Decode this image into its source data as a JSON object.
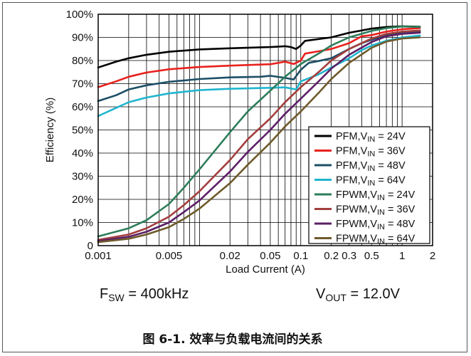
{
  "chart_data": {
    "type": "line",
    "title": "",
    "xlabel": "Load Current (A)",
    "ylabel": "Efficiency (%)",
    "x_scale": "log",
    "xlim": [
      0.001,
      2
    ],
    "ylim": [
      0,
      100
    ],
    "x_ticks": [
      {
        "value": 0.001,
        "label": "0.001"
      },
      {
        "value": 0.005,
        "label": "0.005"
      },
      {
        "value": 0.02,
        "label": "0.02"
      },
      {
        "value": 0.05,
        "label": "0.05"
      },
      {
        "value": 0.1,
        "label": "0.1"
      },
      {
        "value": 0.2,
        "label": "0.2"
      },
      {
        "value": 0.3,
        "label": "0.3"
      },
      {
        "value": 0.5,
        "label": "0.5"
      },
      {
        "value": 1,
        "label": "1"
      },
      {
        "value": 2,
        "label": "2"
      }
    ],
    "y_ticks": [
      {
        "value": 0,
        "label": "0"
      },
      {
        "value": 10,
        "label": "10%"
      },
      {
        "value": 20,
        "label": "20%"
      },
      {
        "value": 30,
        "label": "30%"
      },
      {
        "value": 40,
        "label": "40%"
      },
      {
        "value": 50,
        "label": "50%"
      },
      {
        "value": 60,
        "label": "60%"
      },
      {
        "value": 70,
        "label": "70%"
      },
      {
        "value": 80,
        "label": "80%"
      },
      {
        "value": 90,
        "label": "90%"
      },
      {
        "value": 100,
        "label": "100%"
      }
    ],
    "grid": true,
    "legend_position": "bottom-right",
    "series": [
      {
        "mode": "PFM",
        "sub": "IN",
        "vin": "24V",
        "color": "#000000",
        "points": [
          [
            0.001,
            77
          ],
          [
            0.0015,
            79.5
          ],
          [
            0.002,
            81
          ],
          [
            0.003,
            82.5
          ],
          [
            0.005,
            83.8
          ],
          [
            0.01,
            84.8
          ],
          [
            0.02,
            85.3
          ],
          [
            0.05,
            85.8
          ],
          [
            0.07,
            86.2
          ],
          [
            0.08,
            85.8
          ],
          [
            0.09,
            85
          ],
          [
            0.1,
            86.5
          ],
          [
            0.11,
            88.5
          ],
          [
            0.15,
            89.3
          ],
          [
            0.2,
            90
          ],
          [
            0.3,
            92
          ],
          [
            0.5,
            93.8
          ],
          [
            0.7,
            94.5
          ],
          [
            1,
            94.8
          ],
          [
            1.5,
            94.6
          ]
        ]
      },
      {
        "mode": "PFM",
        "sub": "IN",
        "vin": "36V",
        "color": "#e8211d",
        "points": [
          [
            0.001,
            68.5
          ],
          [
            0.0015,
            71
          ],
          [
            0.002,
            73
          ],
          [
            0.003,
            74.8
          ],
          [
            0.005,
            76.2
          ],
          [
            0.01,
            77.2
          ],
          [
            0.02,
            77.8
          ],
          [
            0.05,
            78.4
          ],
          [
            0.07,
            79.5
          ],
          [
            0.085,
            78.5
          ],
          [
            0.1,
            80
          ],
          [
            0.11,
            83
          ],
          [
            0.15,
            84
          ],
          [
            0.2,
            85
          ],
          [
            0.3,
            87.5
          ],
          [
            0.4,
            90.5
          ],
          [
            0.5,
            91
          ],
          [
            0.7,
            92.5
          ],
          [
            1,
            93.5
          ],
          [
            1.5,
            94
          ]
        ]
      },
      {
        "mode": "PFM",
        "sub": "IN",
        "vin": "48V",
        "color": "#1c4f66",
        "points": [
          [
            0.001,
            62.5
          ],
          [
            0.0015,
            65
          ],
          [
            0.002,
            67.5
          ],
          [
            0.003,
            69.3
          ],
          [
            0.005,
            70.8
          ],
          [
            0.01,
            72
          ],
          [
            0.02,
            72.7
          ],
          [
            0.04,
            73
          ],
          [
            0.05,
            73.4
          ],
          [
            0.07,
            72.5
          ],
          [
            0.085,
            71.8
          ],
          [
            0.1,
            76
          ],
          [
            0.12,
            79
          ],
          [
            0.15,
            79.8
          ],
          [
            0.2,
            81
          ],
          [
            0.3,
            85
          ],
          [
            0.4,
            87.5
          ],
          [
            0.5,
            89
          ],
          [
            0.7,
            91
          ],
          [
            1,
            92
          ],
          [
            1.5,
            92.5
          ]
        ]
      },
      {
        "mode": "PFM",
        "sub": "IN",
        "vin": "64V",
        "color": "#1fb5cf",
        "points": [
          [
            0.001,
            56
          ],
          [
            0.0015,
            59.5
          ],
          [
            0.002,
            62
          ],
          [
            0.003,
            64
          ],
          [
            0.005,
            65.8
          ],
          [
            0.01,
            67.2
          ],
          [
            0.02,
            67.8
          ],
          [
            0.05,
            68.2
          ],
          [
            0.07,
            68.4
          ],
          [
            0.09,
            67.5
          ],
          [
            0.1,
            71
          ],
          [
            0.15,
            74
          ],
          [
            0.2,
            77
          ],
          [
            0.3,
            81
          ],
          [
            0.4,
            84.5
          ],
          [
            0.5,
            86.5
          ],
          [
            0.7,
            88.5
          ],
          [
            1,
            90
          ],
          [
            1.5,
            90.8
          ]
        ]
      },
      {
        "mode": "FPWM",
        "sub": "IN",
        "vin": "24V",
        "color": "#2d7d5a",
        "points": [
          [
            0.001,
            4
          ],
          [
            0.002,
            7.5
          ],
          [
            0.003,
            11
          ],
          [
            0.005,
            18
          ],
          [
            0.007,
            25
          ],
          [
            0.01,
            33
          ],
          [
            0.02,
            49
          ],
          [
            0.03,
            58
          ],
          [
            0.05,
            67
          ],
          [
            0.07,
            73
          ],
          [
            0.1,
            78.5
          ],
          [
            0.15,
            83
          ],
          [
            0.2,
            86.5
          ],
          [
            0.3,
            90
          ],
          [
            0.5,
            92.8
          ],
          [
            0.7,
            94
          ],
          [
            1,
            94.7
          ],
          [
            1.5,
            94.5
          ]
        ]
      },
      {
        "mode": "FPWM",
        "sub": "IN",
        "vin": "36V",
        "color": "#a33e3e",
        "points": [
          [
            0.001,
            2.5
          ],
          [
            0.002,
            4.8
          ],
          [
            0.003,
            7.5
          ],
          [
            0.005,
            12.5
          ],
          [
            0.007,
            17.5
          ],
          [
            0.01,
            23.5
          ],
          [
            0.02,
            37
          ],
          [
            0.03,
            46
          ],
          [
            0.05,
            55
          ],
          [
            0.07,
            62
          ],
          [
            0.1,
            68.5
          ],
          [
            0.15,
            75
          ],
          [
            0.2,
            80
          ],
          [
            0.3,
            85
          ],
          [
            0.5,
            89.5
          ],
          [
            0.7,
            91.5
          ],
          [
            1,
            92.5
          ],
          [
            1.5,
            93
          ]
        ]
      },
      {
        "mode": "FPWM",
        "sub": "IN",
        "vin": "48V",
        "color": "#5c1f66",
        "points": [
          [
            0.001,
            2
          ],
          [
            0.002,
            3.8
          ],
          [
            0.003,
            6
          ],
          [
            0.005,
            10
          ],
          [
            0.007,
            14.5
          ],
          [
            0.01,
            19.5
          ],
          [
            0.02,
            32
          ],
          [
            0.03,
            40.5
          ],
          [
            0.05,
            50
          ],
          [
            0.07,
            57
          ],
          [
            0.1,
            63.5
          ],
          [
            0.15,
            71
          ],
          [
            0.2,
            76.5
          ],
          [
            0.3,
            82.5
          ],
          [
            0.5,
            88
          ],
          [
            0.7,
            90.5
          ],
          [
            1,
            91.5
          ],
          [
            1.5,
            92
          ]
        ]
      },
      {
        "mode": "FPWM",
        "sub": "IN",
        "vin": "64V",
        "color": "#6e5a2b",
        "points": [
          [
            0.001,
            1.5
          ],
          [
            0.002,
            3
          ],
          [
            0.003,
            4.8
          ],
          [
            0.005,
            8
          ],
          [
            0.007,
            11.5
          ],
          [
            0.01,
            16
          ],
          [
            0.02,
            27
          ],
          [
            0.03,
            35
          ],
          [
            0.05,
            44.5
          ],
          [
            0.07,
            51.5
          ],
          [
            0.1,
            58
          ],
          [
            0.15,
            66
          ],
          [
            0.2,
            72
          ],
          [
            0.3,
            79
          ],
          [
            0.5,
            85.5
          ],
          [
            0.7,
            88.2
          ],
          [
            1,
            89.5
          ],
          [
            1.5,
            90
          ]
        ]
      }
    ]
  },
  "notes": {
    "fsw_main": "F",
    "fsw_sub": "SW",
    "fsw_value": " = 400kHz",
    "vout_main": "V",
    "vout_sub": "OUT",
    "vout_value": " = 12.0V"
  },
  "caption": "图 6-1. 效率与负载电流间的关系"
}
